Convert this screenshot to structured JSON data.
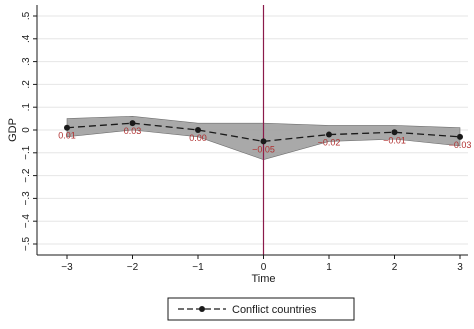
{
  "chart_data": {
    "type": "line",
    "xlabel": "Time",
    "ylabel": "GDP",
    "x": [
      -3,
      -2,
      -1,
      0,
      1,
      2,
      3
    ],
    "xlim": [
      -3,
      3
    ],
    "ylim": [
      -0.5,
      0.5
    ],
    "x_ticks": [
      "−3",
      "−2",
      "−1",
      "0",
      "1",
      "2",
      "3"
    ],
    "y_ticks": [
      ".5",
      ".4",
      ".3",
      ".2",
      ".1",
      "0",
      "−.1",
      "−.2",
      "−.3",
      "−.4",
      "−.5"
    ],
    "y_tick_values": [
      0.5,
      0.4,
      0.3,
      0.2,
      0.1,
      0,
      -0.1,
      -0.2,
      -0.3,
      -0.4,
      -0.5
    ],
    "series": [
      {
        "name": "Conflict countries",
        "values": [
          0.01,
          0.03,
          0.0,
          -0.05,
          -0.02,
          -0.01,
          -0.03
        ],
        "ci_upper": [
          0.05,
          0.06,
          0.03,
          0.03,
          0.02,
          0.02,
          0.01
        ],
        "ci_lower": [
          -0.03,
          0.0,
          -0.03,
          -0.13,
          -0.05,
          -0.04,
          -0.07
        ],
        "labels": [
          "0.01",
          "0.03",
          "0.00",
          "−0.05",
          "−0.02",
          "−0.01",
          "−0.03"
        ]
      }
    ],
    "vertical_reference_line_x": 0,
    "grid": true,
    "legend_position": "bottom-center",
    "colors": {
      "line": "#1a1a1a",
      "band": "#9a9a9a",
      "reference_line": "#8b1a4a",
      "labels": "#b03030",
      "grid": "#e6e6e6"
    }
  }
}
